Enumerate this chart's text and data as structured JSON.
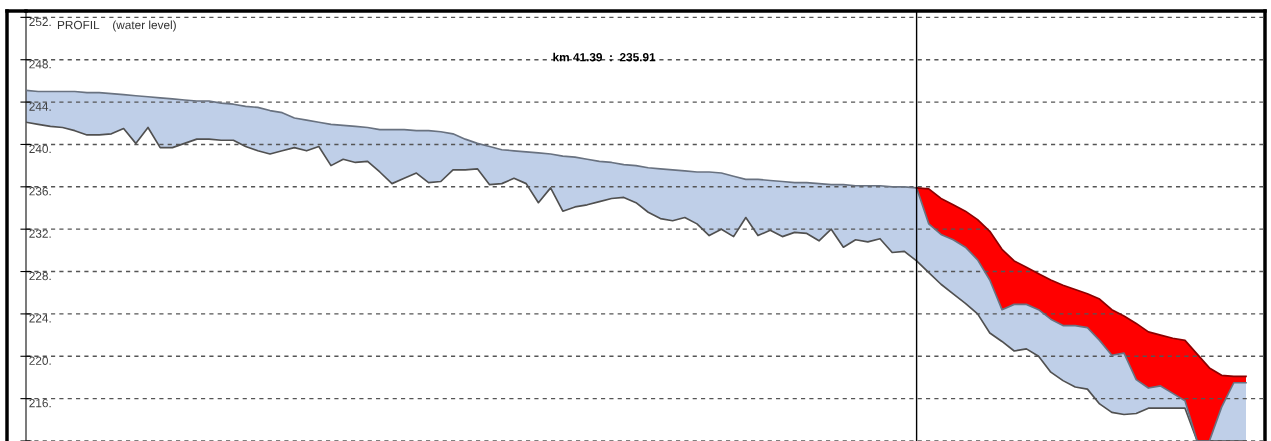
{
  "chart_data": {
    "type": "area",
    "title": "PROFIL    (water level)",
    "categories": [
      null,
      null,
      null,
      null,
      null,
      null,
      null,
      null,
      null,
      null,
      null,
      null,
      null,
      null,
      null,
      null,
      null,
      null,
      null,
      null,
      null,
      null,
      null,
      null,
      null,
      null,
      null,
      null,
      null,
      null,
      null,
      null,
      null,
      null,
      null,
      null,
      null,
      null,
      null,
      null,
      null,
      null,
      null,
      null,
      null,
      null,
      null,
      null,
      null,
      null,
      null,
      null,
      null,
      null,
      null,
      null,
      null,
      null,
      null,
      null,
      null,
      null,
      null,
      null,
      null,
      null,
      null,
      null,
      null,
      null,
      null,
      null,
      null,
      null,
      null,
      null,
      null,
      null,
      null,
      null,
      null,
      null,
      null,
      null,
      null,
      null,
      null,
      null,
      null,
      null,
      null,
      null,
      null,
      null,
      null,
      null,
      null,
      null,
      null,
      null,
      null
    ],
    "series": [
      {
        "type": "line",
        "color": "#505050",
        "values": [
          242.1,
          241.9,
          241.7,
          241.6,
          241.3,
          240.9,
          240.9,
          241.0,
          241.5,
          240.1,
          241.6,
          239.7,
          239.7,
          240.1,
          240.5,
          240.5,
          240.4,
          240.4,
          239.8,
          239.4,
          239.1,
          239.4,
          239.7,
          239.4,
          239.8,
          238.0,
          238.6,
          238.3,
          238.4,
          237.4,
          236.3,
          236.8,
          237.3,
          236.4,
          236.5,
          237.6,
          237.6,
          237.7,
          236.2,
          236.3,
          236.8,
          236.3,
          234.5,
          235.9,
          233.7,
          234.1,
          234.3,
          234.6,
          234.9,
          235.0,
          234.5,
          233.6,
          233.0,
          232.8,
          233.1,
          232.5,
          231.4,
          232.0,
          231.3,
          233.1,
          231.4,
          231.9,
          231.3,
          231.7,
          231.6,
          230.9,
          232.0,
          230.3,
          231.0,
          230.8,
          231.1,
          229.8,
          229.9,
          229.0,
          227.9,
          226.8,
          225.9,
          225.0,
          224.0,
          222.2,
          221.4,
          220.5,
          220.7,
          220.0,
          218.5,
          217.7,
          217.1,
          216.9,
          215.5,
          214.7,
          214.5,
          214.6,
          215.1,
          215.1,
          215.1,
          215.1,
          212,
          212,
          212,
          212,
          212
        ]
      },
      {
        "color": "#bfcfe8",
        "values": [
          245.1,
          245.0,
          245.0,
          245.0,
          245.0,
          244.9,
          244.9,
          244.8,
          244.7,
          244.6,
          244.5,
          244.4,
          244.3,
          244.2,
          244.1,
          244.1,
          243.9,
          243.8,
          243.6,
          243.5,
          243.2,
          243.0,
          242.5,
          242.3,
          242.1,
          241.9,
          241.8,
          241.7,
          241.6,
          241.4,
          241.4,
          241.4,
          241.3,
          241.3,
          241.2,
          241.0,
          240.5,
          240.1,
          239.8,
          239.5,
          239.4,
          239.3,
          239.2,
          239.1,
          238.9,
          238.8,
          238.6,
          238.4,
          238.3,
          238.1,
          238.0,
          237.8,
          237.7,
          237.6,
          237.5,
          237.4,
          237.4,
          237.3,
          237.0,
          236.7,
          236.7,
          236.6,
          236.5,
          236.4,
          236.4,
          236.3,
          236.2,
          236.2,
          236.1,
          236.1,
          236.1,
          236.0,
          236.0,
          235.9,
          232.5,
          231.5,
          231.0,
          230.3,
          229.1,
          227.2,
          224.4,
          224.9,
          224.9,
          224.4,
          223.5,
          222.9,
          222.9,
          222.7,
          221.5,
          220.1,
          220.3,
          217.8,
          217.0,
          217.2,
          216.5,
          215.8,
          212,
          212,
          215.2,
          217.5,
          217.5
        ]
      },
      {
        "color": "#ff0000",
        "values": [
          null,
          null,
          null,
          null,
          null,
          null,
          null,
          null,
          null,
          null,
          null,
          null,
          null,
          null,
          null,
          null,
          null,
          null,
          null,
          null,
          null,
          null,
          null,
          null,
          null,
          null,
          null,
          null,
          null,
          null,
          null,
          null,
          null,
          null,
          null,
          null,
          null,
          null,
          null,
          null,
          null,
          null,
          null,
          null,
          null,
          null,
          null,
          null,
          null,
          null,
          null,
          null,
          null,
          null,
          null,
          null,
          null,
          null,
          null,
          null,
          null,
          null,
          null,
          null,
          null,
          null,
          null,
          null,
          null,
          null,
          null,
          null,
          null,
          235.9,
          235.8,
          234.9,
          234.3,
          233.7,
          232.9,
          231.8,
          230.1,
          229.0,
          228.4,
          227.8,
          227.2,
          226.7,
          226.3,
          225.9,
          225.4,
          224.4,
          223.8,
          223.1,
          222.3,
          222.0,
          221.7,
          221.5,
          220.2,
          218.9,
          218.2,
          218.1,
          218.1
        ]
      }
    ],
    "ylim": [
      212,
      252.6
    ],
    "yticks": [
      {
        "value": 212,
        "label": null
      },
      {
        "value": 216,
        "label": "216."
      },
      {
        "value": 220,
        "label": "220."
      },
      {
        "value": 224,
        "label": "224."
      },
      {
        "value": 228,
        "label": "228."
      },
      {
        "value": 232,
        "label": "232."
      },
      {
        "value": 236,
        "label": "236."
      },
      {
        "value": 240,
        "label": "240."
      },
      {
        "value": 244,
        "label": "244."
      },
      {
        "value": 248,
        "label": "248."
      },
      {
        "value": 252,
        "label": "252."
      }
    ],
    "annotations": [
      "km 41.39  :  235.91"
    ],
    "grid": "y",
    "tick_labels": "y"
  }
}
